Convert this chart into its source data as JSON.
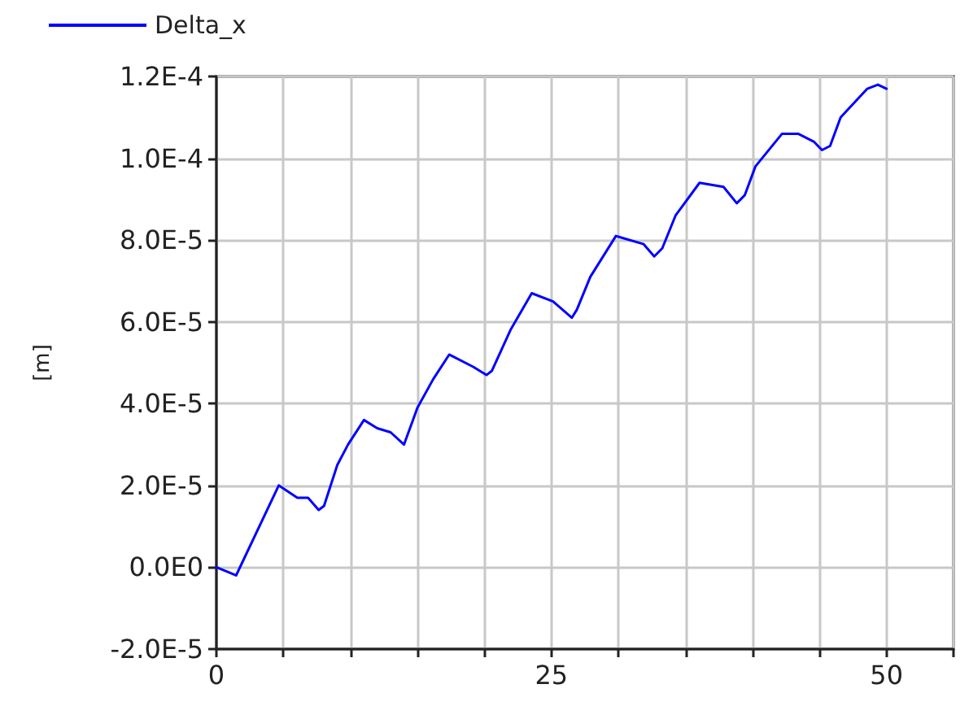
{
  "chart_data": {
    "type": "line",
    "ylabel": "[m]",
    "x": [
      0,
      1.47,
      4.65,
      6.04,
      6.84,
      7.63,
      8.03,
      9.02,
      9.82,
      11.01,
      12.0,
      13.0,
      14.0,
      15.0,
      16.18,
      17.37,
      19.16,
      20.15,
      20.55,
      21.94,
      23.53,
      25.12,
      26.52,
      26.9,
      27.9,
      29.81,
      31.88,
      32.67,
      33.27,
      34.26,
      36.05,
      37.84,
      38.83,
      39.43,
      40.22,
      42.21,
      43.4,
      44.6,
      45.19,
      45.79,
      46.58,
      48.57,
      49.36,
      50.0
    ],
    "series": [
      {
        "name": "Delta_x",
        "color": "#0000ff",
        "values": [
          0,
          -2e-06,
          2e-05,
          1.7e-05,
          1.7e-05,
          1.4e-05,
          1.5e-05,
          2.5e-05,
          3e-05,
          3.6e-05,
          3.4e-05,
          3.3e-05,
          3e-05,
          3.9e-05,
          4.6e-05,
          5.2e-05,
          4.9e-05,
          4.7e-05,
          4.8e-05,
          5.8e-05,
          6.7e-05,
          6.5e-05,
          6.1e-05,
          6.3e-05,
          7.1e-05,
          8.1e-05,
          7.9e-05,
          7.6e-05,
          7.8e-05,
          8.6e-05,
          9.4e-05,
          9.3e-05,
          8.9e-05,
          9.1e-05,
          9.8e-05,
          0.000106,
          0.000106,
          0.000104,
          0.000102,
          0.000103,
          0.00011,
          0.000117,
          0.000118,
          0.000117
        ]
      }
    ],
    "xlim": [
      0,
      55
    ],
    "xticks": [
      0,
      {
        "value": 5,
        "label": null
      },
      {
        "value": 10,
        "label": null
      },
      {
        "value": 15,
        "label": null
      },
      {
        "value": 20,
        "label": null
      },
      25,
      {
        "value": 30,
        "label": null
      },
      {
        "value": 35,
        "label": null
      },
      {
        "value": 40,
        "label": null
      },
      {
        "value": 45,
        "label": null
      },
      50,
      {
        "value": 55,
        "label": null
      }
    ],
    "ylim": [
      -2e-05,
      0.00012
    ],
    "yticks": [
      {
        "value": -2e-05,
        "label": "-2.0E-5"
      },
      {
        "value": 0,
        "label": "0.0E0"
      },
      {
        "value": 2e-05,
        "label": "2.0E-5"
      },
      {
        "value": 4e-05,
        "label": "4.0E-5"
      },
      {
        "value": 6e-05,
        "label": "6.0E-5"
      },
      {
        "value": 8e-05,
        "label": "8.0E-5"
      },
      {
        "value": 0.0001,
        "label": "1.0E-4"
      },
      {
        "value": 0.00012,
        "label": "1.2E-4"
      }
    ],
    "grid": true,
    "legend": "top left",
    "marker": "none",
    "line_style": "solid"
  }
}
